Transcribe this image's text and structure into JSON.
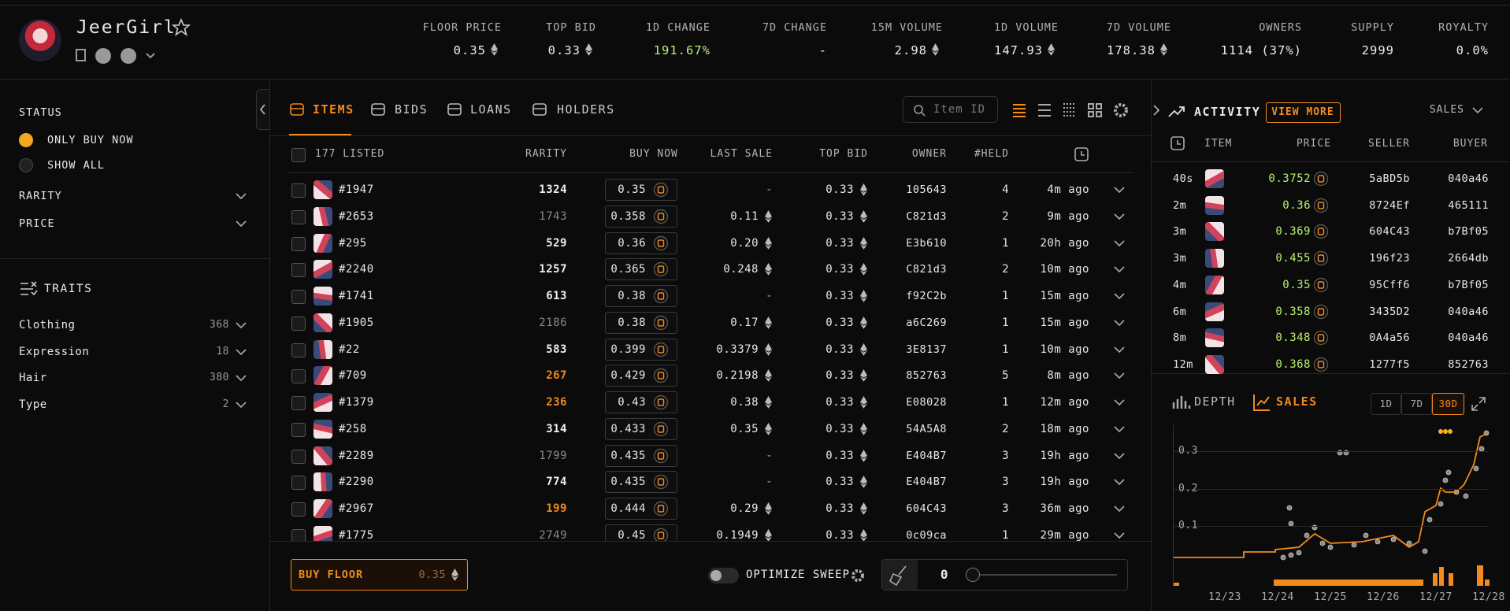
{
  "header": {
    "name": "JeerGirl",
    "stats": [
      {
        "label": "FLOOR PRICE",
        "value": "0.35"
      },
      {
        "label": "TOP BID",
        "value": "0.33"
      },
      {
        "label": "1D CHANGE",
        "value": "191.67%"
      },
      {
        "label": "7D CHANGE",
        "value": "-"
      },
      {
        "label": "15M VOLUME",
        "value": "2.98"
      },
      {
        "label": "1D VOLUME",
        "value": "147.93"
      },
      {
        "label": "7D VOLUME",
        "value": "178.38"
      },
      {
        "label": "OWNERS",
        "value": "1114 (37%)"
      },
      {
        "label": "SUPPLY",
        "value": "2999"
      },
      {
        "label": "ROYALTY",
        "value": "0.0%"
      }
    ]
  },
  "sidebar": {
    "status": {
      "title": "STATUS",
      "options": [
        "ONLY BUY NOW",
        "SHOW ALL"
      ]
    },
    "filters": [
      "RARITY",
      "PRICE"
    ],
    "traits": {
      "title": "TRAITS",
      "items": [
        {
          "name": "Clothing",
          "count": "368"
        },
        {
          "name": "Expression",
          "count": "18"
        },
        {
          "name": "Hair",
          "count": "380"
        },
        {
          "name": "Type",
          "count": "2"
        }
      ]
    }
  },
  "items_panel": {
    "tabs": [
      "ITEMS",
      "BIDS",
      "LOANS",
      "HOLDERS"
    ],
    "search_placeholder": "Item ID",
    "table": {
      "columns": [
        "177 LISTED",
        "RARITY",
        "BUY NOW",
        "LAST SALE",
        "TOP BID",
        "OWNER",
        "#HELD"
      ],
      "rows": [
        [
          "#1947",
          "1324",
          "0.35",
          "-",
          "0.33",
          "105643",
          "4",
          "4m ago"
        ],
        [
          "#2653",
          "1743",
          "0.358",
          "0.11",
          "0.33",
          "C821d3",
          "2",
          "9m ago"
        ],
        [
          "#295",
          "529",
          "0.36",
          "0.20",
          "0.33",
          "E3b610",
          "1",
          "20h ago"
        ],
        [
          "#2240",
          "1257",
          "0.365",
          "0.248",
          "0.33",
          "C821d3",
          "2",
          "10m ago"
        ],
        [
          "#1741",
          "613",
          "0.38",
          "-",
          "0.33",
          "f92C2b",
          "1",
          "15m ago"
        ],
        [
          "#1905",
          "2186",
          "0.38",
          "0.17",
          "0.33",
          "a6C269",
          "1",
          "15m ago"
        ],
        [
          "#22",
          "583",
          "0.399",
          "0.3379",
          "0.33",
          "3E8137",
          "1",
          "10m ago"
        ],
        [
          "#709",
          "267",
          "0.429",
          "0.2198",
          "0.33",
          "852763",
          "5",
          "8m ago"
        ],
        [
          "#1379",
          "236",
          "0.43",
          "0.38",
          "0.33",
          "E08028",
          "1",
          "12m ago"
        ],
        [
          "#258",
          "314",
          "0.433",
          "0.35",
          "0.33",
          "54A5A8",
          "2",
          "18m ago"
        ],
        [
          "#2289",
          "1799",
          "0.435",
          "-",
          "0.33",
          "E404B7",
          "3",
          "19h ago"
        ],
        [
          "#2290",
          "774",
          "0.435",
          "-",
          "0.33",
          "E404B7",
          "3",
          "19h ago"
        ],
        [
          "#2967",
          "199",
          "0.444",
          "0.29",
          "0.33",
          "604C43",
          "3",
          "36m ago"
        ],
        [
          "#1775",
          "2749",
          "0.45",
          "0.1949",
          "0.33",
          "0c09ca",
          "1",
          "29m ago"
        ]
      ]
    },
    "footer": {
      "buy_floor": "BUY FLOOR",
      "floor_price": "0.35",
      "optimize_sweep": "OPTIMIZE SWEEP",
      "sweep_count": "0"
    }
  },
  "activity": {
    "title": "ACTIVITY",
    "view_more": "VIEW MORE",
    "filter": "SALES",
    "columns": [
      "ITEM",
      "PRICE",
      "SELLER",
      "BUYER"
    ],
    "rows": [
      [
        "40s",
        "0.3752",
        "5aBD5b",
        "040a46"
      ],
      [
        "2m",
        "0.36",
        "8724Ef",
        "465111"
      ],
      [
        "3m",
        "0.369",
        "604C43",
        "b7Bf05"
      ],
      [
        "3m",
        "0.455",
        "196f23",
        "2664db"
      ],
      [
        "4m",
        "0.35",
        "95Cff6",
        "b7Bf05"
      ],
      [
        "6m",
        "0.358",
        "3435D2",
        "040a46"
      ],
      [
        "8m",
        "0.348",
        "0A4a56",
        "040a46"
      ],
      [
        "12m",
        "0.368",
        "1277f5",
        "852763"
      ]
    ]
  },
  "sales_chart": {
    "tabs": [
      "DEPTH",
      "SALES"
    ],
    "ranges": [
      "1D",
      "7D",
      "30D"
    ],
    "yticks": [
      0.3,
      0.2,
      0.1
    ],
    "xticks": [
      "12/23",
      "12/24",
      "12/25",
      "12/26",
      "12/27",
      "12/28"
    ]
  }
}
